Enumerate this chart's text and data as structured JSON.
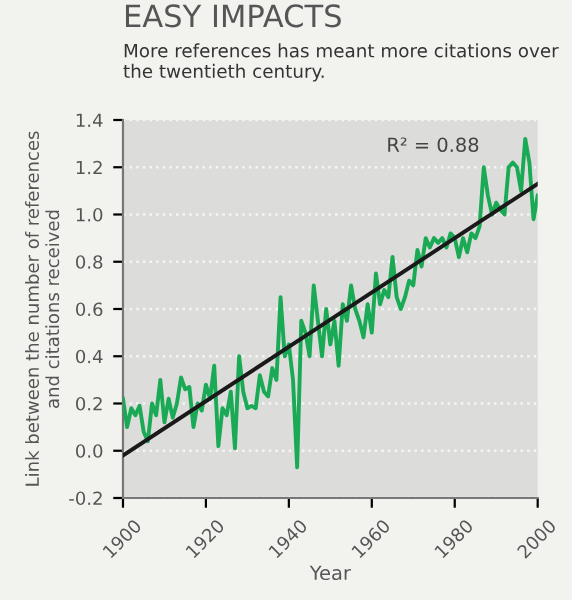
{
  "chart_data": {
    "type": "line",
    "title": "EASY IMPACTS",
    "subtitle": "More references has meant more citations over the twentieth century.",
    "xlabel": "Year",
    "ylabel": "Link between the number of references\nand citations received",
    "xlim": [
      1900,
      2000
    ],
    "xticks": [
      1900,
      1920,
      1940,
      1960,
      1980,
      2000
    ],
    "ylim": [
      -0.2,
      1.4
    ],
    "yticks": [
      -0.2,
      {
        "value": 0,
        "label": "0.0"
      },
      0.2,
      0.4,
      0.6,
      0.8,
      {
        "value": 1,
        "label": "1.0"
      },
      1.2,
      1.4
    ],
    "grid": "y",
    "legend": false,
    "annotations": [
      "R² = 0.88"
    ],
    "series": [
      {
        "color": "#1aaa55",
        "x": [
          1900,
          1901,
          1902,
          1903,
          1904,
          1905,
          1906,
          1907,
          1908,
          1909,
          1910,
          1911,
          1912,
          1913,
          1914,
          1915,
          1916,
          1917,
          1918,
          1919,
          1920,
          1921,
          1922,
          1923,
          1924,
          1925,
          1926,
          1927,
          1928,
          1929,
          1930,
          1931,
          1932,
          1933,
          1934,
          1935,
          1936,
          1937,
          1938,
          1939,
          1940,
          1941,
          1942,
          1943,
          1944,
          1945,
          1946,
          1947,
          1948,
          1949,
          1950,
          1951,
          1952,
          1953,
          1954,
          1955,
          1956,
          1957,
          1958,
          1959,
          1960,
          1961,
          1962,
          1963,
          1964,
          1965,
          1966,
          1967,
          1968,
          1969,
          1970,
          1971,
          1972,
          1973,
          1974,
          1975,
          1976,
          1977,
          1978,
          1979,
          1980,
          1981,
          1982,
          1983,
          1984,
          1985,
          1986,
          1987,
          1988,
          1989,
          1990,
          1991,
          1992,
          1993,
          1994,
          1995,
          1996,
          1997,
          1998,
          1999,
          2000
        ],
        "values": [
          0.22,
          0.1,
          0.18,
          0.15,
          0.19,
          0.08,
          0.04,
          0.2,
          0.15,
          0.3,
          0.12,
          0.22,
          0.14,
          0.2,
          0.31,
          0.26,
          0.27,
          0.1,
          0.2,
          0.17,
          0.28,
          0.22,
          0.36,
          0.02,
          0.18,
          0.15,
          0.25,
          0.01,
          0.4,
          0.25,
          0.18,
          0.19,
          0.18,
          0.32,
          0.25,
          0.23,
          0.35,
          0.3,
          0.65,
          0.4,
          0.45,
          0.3,
          -0.07,
          0.55,
          0.5,
          0.4,
          0.7,
          0.55,
          0.4,
          0.6,
          0.45,
          0.55,
          0.36,
          0.62,
          0.55,
          0.7,
          0.6,
          0.55,
          0.48,
          0.62,
          0.5,
          0.75,
          0.62,
          0.68,
          0.65,
          0.82,
          0.65,
          0.6,
          0.65,
          0.72,
          0.7,
          0.85,
          0.78,
          0.9,
          0.86,
          0.9,
          0.88,
          0.9,
          0.86,
          0.92,
          0.9,
          0.82,
          0.9,
          0.84,
          0.92,
          0.9,
          0.95,
          1.2,
          1.08,
          1.0,
          1.05,
          1.02,
          1.0,
          1.2,
          1.22,
          1.2,
          1.1,
          1.32,
          1.22,
          0.98,
          1.08
        ]
      },
      {
        "color": "#1a1a1a",
        "x": [
          1900,
          2000
        ],
        "values": [
          -0.02,
          1.13
        ]
      }
    ]
  }
}
